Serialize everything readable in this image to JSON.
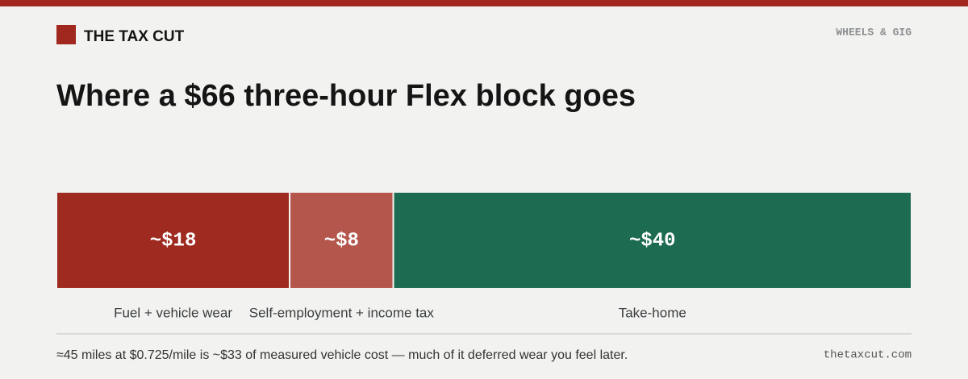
{
  "header": {
    "brand": "THE TAX CUT",
    "section": "WHEELS & GIG"
  },
  "chart_data": {
    "type": "stacked-bar",
    "title": "Where a $66 three-hour Flex block goes",
    "categories": [
      "Fuel + vehicle wear",
      "Self-employment + income tax",
      "Take-home"
    ],
    "values": [
      18,
      8,
      40
    ],
    "value_labels": [
      "~$18",
      "~$8",
      "~$40"
    ],
    "colors": [
      "#9e2a20",
      "#b5564c",
      "#1d6b50"
    ]
  },
  "footer": {
    "note": "≈45 miles at $0.725/mile is ~$33 of measured vehicle cost — much of it deferred wear you feel later.",
    "site": "thetaxcut.com"
  }
}
